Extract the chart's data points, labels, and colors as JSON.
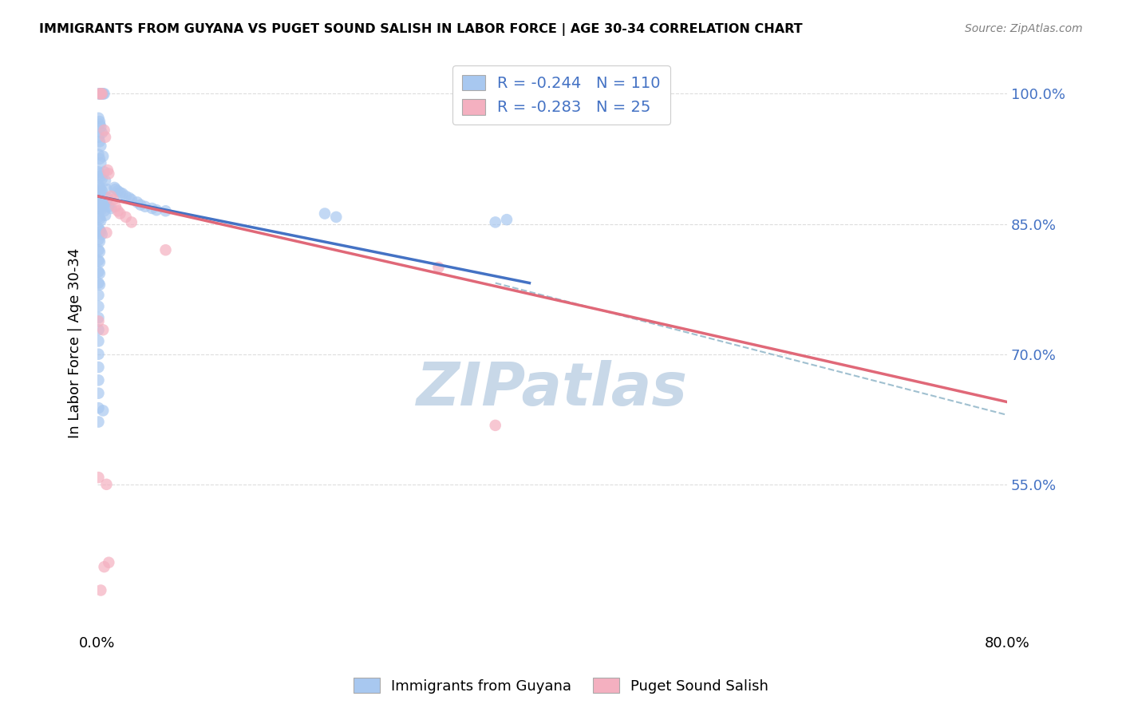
{
  "title": "IMMIGRANTS FROM GUYANA VS PUGET SOUND SALISH IN LABOR FORCE | AGE 30-34 CORRELATION CHART",
  "source": "Source: ZipAtlas.com",
  "ylabel": "In Labor Force | Age 30-34",
  "legend_label1": "Immigrants from Guyana",
  "legend_label2": "Puget Sound Salish",
  "legend_R1": "-0.244",
  "legend_N1": "110",
  "legend_R2": "-0.283",
  "legend_N2": "25",
  "blue_fill": "#A8C8F0",
  "pink_fill": "#F4B0C0",
  "blue_line_color": "#4472C4",
  "pink_line_color": "#E06878",
  "dashed_color": "#A0C0D0",
  "watermark_color": "#C8D8E8",
  "right_axis_color": "#4472C4",
  "grid_color": "#DDDDDD",
  "blue_line_x": [
    0.0,
    0.38
  ],
  "blue_line_y": [
    0.882,
    0.782
  ],
  "pink_line_x": [
    0.0,
    0.8
  ],
  "pink_line_y": [
    0.882,
    0.645
  ],
  "dashed_line_x": [
    0.35,
    0.8
  ],
  "dashed_line_y": [
    0.782,
    0.63
  ],
  "blue_pts": [
    [
      0.001,
      1.0
    ],
    [
      0.002,
      1.0
    ],
    [
      0.003,
      1.0
    ],
    [
      0.004,
      1.0
    ],
    [
      0.005,
      1.0
    ],
    [
      0.006,
      1.0
    ],
    [
      0.001,
      0.972
    ],
    [
      0.002,
      0.965
    ],
    [
      0.001,
      0.95
    ],
    [
      0.002,
      0.945
    ],
    [
      0.003,
      0.94
    ],
    [
      0.001,
      0.93
    ],
    [
      0.002,
      0.925
    ],
    [
      0.003,
      0.92
    ],
    [
      0.005,
      0.928
    ],
    [
      0.001,
      0.91
    ],
    [
      0.002,
      0.908
    ],
    [
      0.003,
      0.905
    ],
    [
      0.004,
      0.902
    ],
    [
      0.006,
      0.91
    ],
    [
      0.001,
      0.895
    ],
    [
      0.002,
      0.892
    ],
    [
      0.003,
      0.89
    ],
    [
      0.004,
      0.888
    ],
    [
      0.007,
      0.9
    ],
    [
      0.001,
      0.882
    ],
    [
      0.002,
      0.88
    ],
    [
      0.003,
      0.878
    ],
    [
      0.004,
      0.875
    ],
    [
      0.008,
      0.89
    ],
    [
      0.001,
      0.87
    ],
    [
      0.002,
      0.868
    ],
    [
      0.003,
      0.866
    ],
    [
      0.005,
      0.872
    ],
    [
      0.009,
      0.88
    ],
    [
      0.001,
      0.858
    ],
    [
      0.002,
      0.856
    ],
    [
      0.003,
      0.854
    ],
    [
      0.006,
      0.865
    ],
    [
      0.01,
      0.87
    ],
    [
      0.001,
      0.845
    ],
    [
      0.002,
      0.843
    ],
    [
      0.003,
      0.841
    ],
    [
      0.007,
      0.86
    ],
    [
      0.001,
      0.832
    ],
    [
      0.002,
      0.83
    ],
    [
      0.004,
      0.838
    ],
    [
      0.001,
      0.82
    ],
    [
      0.002,
      0.818
    ],
    [
      0.001,
      0.808
    ],
    [
      0.002,
      0.806
    ],
    [
      0.001,
      0.795
    ],
    [
      0.002,
      0.793
    ],
    [
      0.001,
      0.782
    ],
    [
      0.002,
      0.78
    ],
    [
      0.001,
      0.768
    ],
    [
      0.001,
      0.755
    ],
    [
      0.001,
      0.742
    ],
    [
      0.001,
      0.728
    ],
    [
      0.001,
      0.715
    ],
    [
      0.001,
      0.7
    ],
    [
      0.001,
      0.685
    ],
    [
      0.001,
      0.67
    ],
    [
      0.001,
      0.655
    ],
    [
      0.001,
      0.638
    ],
    [
      0.001,
      0.622
    ],
    [
      0.015,
      0.892
    ],
    [
      0.018,
      0.888
    ],
    [
      0.022,
      0.885
    ],
    [
      0.025,
      0.882
    ],
    [
      0.03,
      0.878
    ],
    [
      0.035,
      0.875
    ],
    [
      0.042,
      0.87
    ],
    [
      0.048,
      0.868
    ],
    [
      0.06,
      0.865
    ],
    [
      0.2,
      0.862
    ],
    [
      0.21,
      0.858
    ],
    [
      0.35,
      0.852
    ],
    [
      0.36,
      0.855
    ],
    [
      0.005,
      0.635
    ],
    [
      0.004,
      0.955
    ],
    [
      0.003,
      0.962
    ],
    [
      0.002,
      0.968
    ],
    [
      0.008,
      0.875
    ],
    [
      0.012,
      0.868
    ],
    [
      0.016,
      0.89
    ],
    [
      0.02,
      0.886
    ],
    [
      0.028,
      0.88
    ],
    [
      0.038,
      0.872
    ],
    [
      0.052,
      0.866
    ]
  ],
  "pink_pts": [
    [
      0.002,
      1.0
    ],
    [
      0.003,
      1.0
    ],
    [
      0.004,
      1.0
    ],
    [
      0.006,
      0.958
    ],
    [
      0.007,
      0.95
    ],
    [
      0.009,
      0.912
    ],
    [
      0.01,
      0.908
    ],
    [
      0.012,
      0.882
    ],
    [
      0.014,
      0.878
    ],
    [
      0.016,
      0.87
    ],
    [
      0.02,
      0.862
    ],
    [
      0.025,
      0.858
    ],
    [
      0.03,
      0.852
    ],
    [
      0.008,
      0.84
    ],
    [
      0.018,
      0.865
    ],
    [
      0.06,
      0.82
    ],
    [
      0.001,
      0.738
    ],
    [
      0.005,
      0.728
    ],
    [
      0.3,
      0.8
    ],
    [
      0.35,
      0.618
    ],
    [
      0.001,
      0.558
    ],
    [
      0.008,
      0.55
    ],
    [
      0.01,
      0.46
    ],
    [
      0.006,
      0.455
    ],
    [
      0.003,
      0.428
    ]
  ],
  "xmin": 0.0,
  "xmax": 0.8,
  "ymin": 0.38,
  "ymax": 1.045,
  "ytick_right": [
    0.55,
    0.7,
    0.85,
    1.0
  ],
  "ytick_labels_right": [
    "55.0%",
    "70.0%",
    "85.0%",
    "100.0%"
  ],
  "xtick_pos": [
    0.0,
    0.1,
    0.2,
    0.3,
    0.4,
    0.5,
    0.6,
    0.7,
    0.8
  ],
  "xtick_labels": [
    "0.0%",
    "",
    "",
    "",
    "",
    "",
    "",
    "",
    "80.0%"
  ]
}
